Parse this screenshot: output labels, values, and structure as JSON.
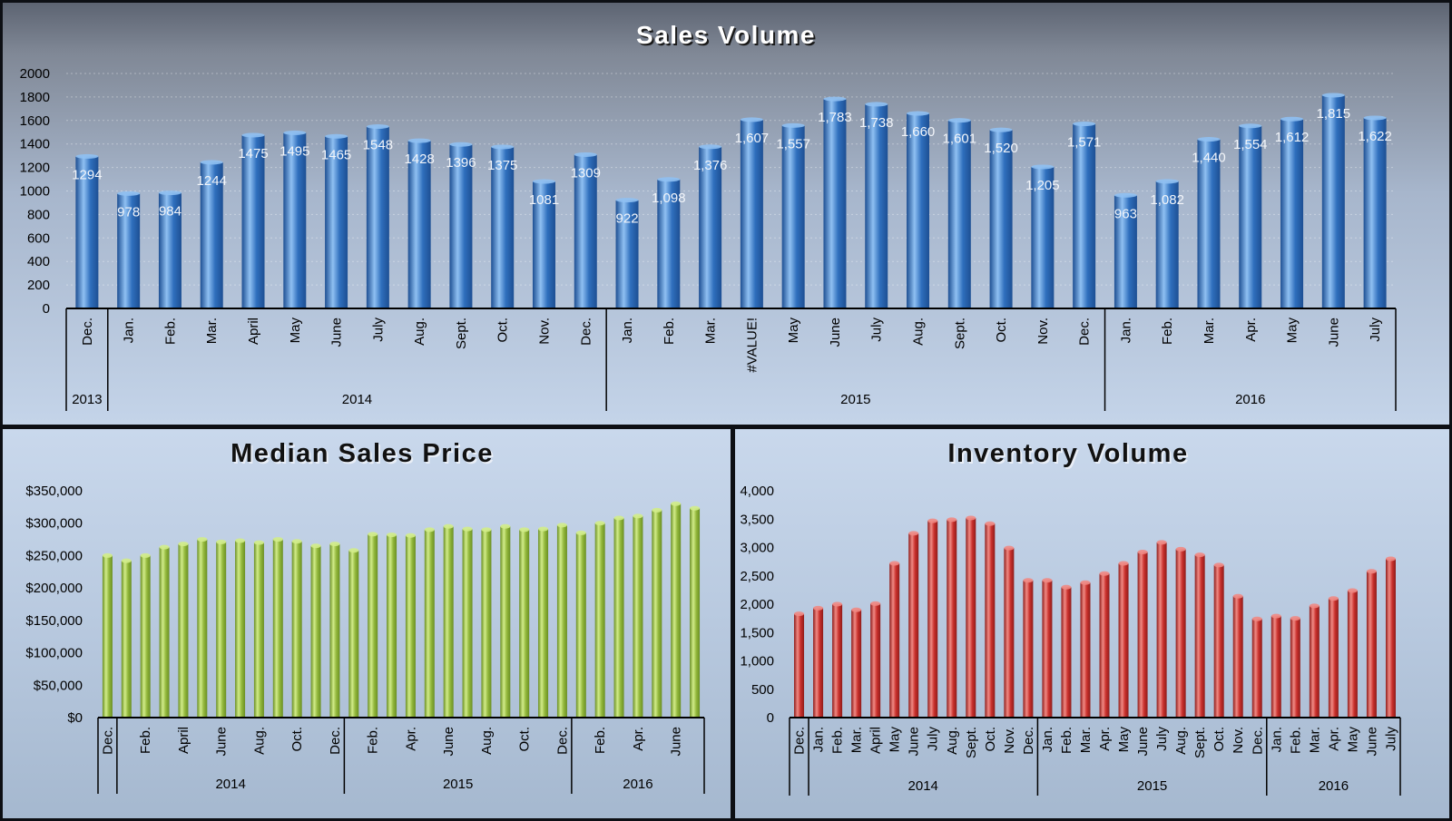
{
  "colors": {
    "sales_bar": "#2f6fbd",
    "price_bar": "#93b83c",
    "inventory_bar": "#c9302c"
  },
  "chart_data": [
    {
      "id": "sales",
      "type": "bar",
      "title": "Sales Volume",
      "ylim": [
        0,
        2000
      ],
      "yticks": [
        0,
        200,
        400,
        600,
        800,
        1000,
        1200,
        1400,
        1600,
        1800,
        2000
      ],
      "ytick_labels": [
        "0",
        "200",
        "400",
        "600",
        "800",
        "1000",
        "1200",
        "1400",
        "1600",
        "1800",
        "2000"
      ],
      "grid": true,
      "categories": [
        "Dec.",
        "Jan.",
        "Feb.",
        "Mar.",
        "April",
        "May",
        "June",
        "July",
        "Aug.",
        "Sept.",
        "Oct.",
        "Nov.",
        "Dec.",
        "Jan.",
        "Feb.",
        "Mar.",
        "#VALUE!",
        "May",
        "June",
        "July",
        "Aug.",
        "Sept.",
        "Oct.",
        "Nov.",
        "Dec.",
        "Jan.",
        "Feb.",
        "Mar.",
        "Apr.",
        "May",
        "June",
        "July"
      ],
      "values": [
        1294,
        978,
        984,
        1244,
        1475,
        1495,
        1465,
        1548,
        1428,
        1396,
        1375,
        1081,
        1309,
        922,
        1098,
        1376,
        1607,
        1557,
        1783,
        1738,
        1660,
        1601,
        1520,
        1205,
        1571,
        963,
        1082,
        1440,
        1554,
        1612,
        1815,
        1622
      ],
      "data_labels": [
        "1294",
        "978",
        "984",
        "1244",
        "1475",
        "1495",
        "1465",
        "1548",
        "1428",
        "1396",
        "1375",
        "1081",
        "1309",
        "922",
        "1,098",
        "1,376",
        "1,607",
        "1,557",
        "1,783",
        "1,738",
        "1,660",
        "1,601",
        "1,520",
        "1,205",
        "1,571",
        "963",
        "1,082",
        "1,440",
        "1,554",
        "1,612",
        "1,815",
        "1,622"
      ],
      "groups": [
        {
          "label": "2013",
          "count": 1
        },
        {
          "label": "2014",
          "count": 12
        },
        {
          "label": "2015",
          "count": 12
        },
        {
          "label": "2016",
          "count": 7
        }
      ]
    },
    {
      "id": "price",
      "type": "bar",
      "title": "Median Sales Price",
      "ylim": [
        0,
        350000
      ],
      "yticks": [
        0,
        50000,
        100000,
        150000,
        200000,
        250000,
        300000,
        350000
      ],
      "ytick_labels": [
        "$0",
        "$50,000",
        "$100,000",
        "$150,000",
        "$200,000",
        "$250,000",
        "$300,000",
        "$350,000"
      ],
      "grid": false,
      "categories": [
        "Dec.",
        "",
        "Feb.",
        "",
        "April",
        "",
        "June",
        "",
        "Aug.",
        "",
        "Oct.",
        "",
        "Dec.",
        "",
        "Feb.",
        "",
        "Apr.",
        "",
        "June",
        "",
        "Aug.",
        "",
        "Oct.",
        "",
        "Dec.",
        "",
        "Feb.",
        "",
        "Apr.",
        "",
        "June",
        ""
      ],
      "values": [
        250000,
        242000,
        250000,
        263000,
        268000,
        275000,
        271000,
        273000,
        270000,
        275000,
        272000,
        265000,
        268000,
        258000,
        283000,
        282000,
        281000,
        290000,
        295000,
        291000,
        290000,
        295000,
        290000,
        291000,
        297000,
        285000,
        300000,
        308000,
        311000,
        320000,
        330000,
        323000
      ],
      "groups": [
        {
          "label": "",
          "count": 1
        },
        {
          "label": "2014",
          "count": 12
        },
        {
          "label": "2015",
          "count": 12
        },
        {
          "label": "2016",
          "count": 7
        }
      ]
    },
    {
      "id": "inventory",
      "type": "bar",
      "title": "Inventory Volume",
      "ylim": [
        0,
        4000
      ],
      "yticks": [
        0,
        500,
        1000,
        1500,
        2000,
        2500,
        3000,
        3500,
        4000
      ],
      "ytick_labels": [
        "0",
        "500",
        "1,000",
        "1,500",
        "2,000",
        "2,500",
        "3,000",
        "3,500",
        "4,000"
      ],
      "grid": false,
      "categories": [
        "Dec.",
        "Jan.",
        "Feb.",
        "Mar.",
        "April",
        "May",
        "June",
        "July",
        "Aug.",
        "Sept.",
        "Oct.",
        "Nov.",
        "Dec.",
        "Jan.",
        "Feb.",
        "Mar.",
        "Apr.",
        "May",
        "June",
        "July",
        "Aug.",
        "Sept.",
        "Oct.",
        "Nov.",
        "Dec.",
        "Jan.",
        "Feb.",
        "Mar.",
        "Apr.",
        "May",
        "June",
        "July"
      ],
      "values": [
        1830,
        1930,
        2000,
        1900,
        2010,
        2720,
        3250,
        3470,
        3490,
        3520,
        3420,
        2990,
        2420,
        2420,
        2300,
        2380,
        2540,
        2720,
        2920,
        3090,
        2970,
        2870,
        2690,
        2140,
        1740,
        1790,
        1750,
        1970,
        2100,
        2240,
        2580,
        2800
      ],
      "groups": [
        {
          "label": "",
          "count": 1
        },
        {
          "label": "2014",
          "count": 12
        },
        {
          "label": "2015",
          "count": 12
        },
        {
          "label": "2016",
          "count": 7
        }
      ]
    }
  ]
}
